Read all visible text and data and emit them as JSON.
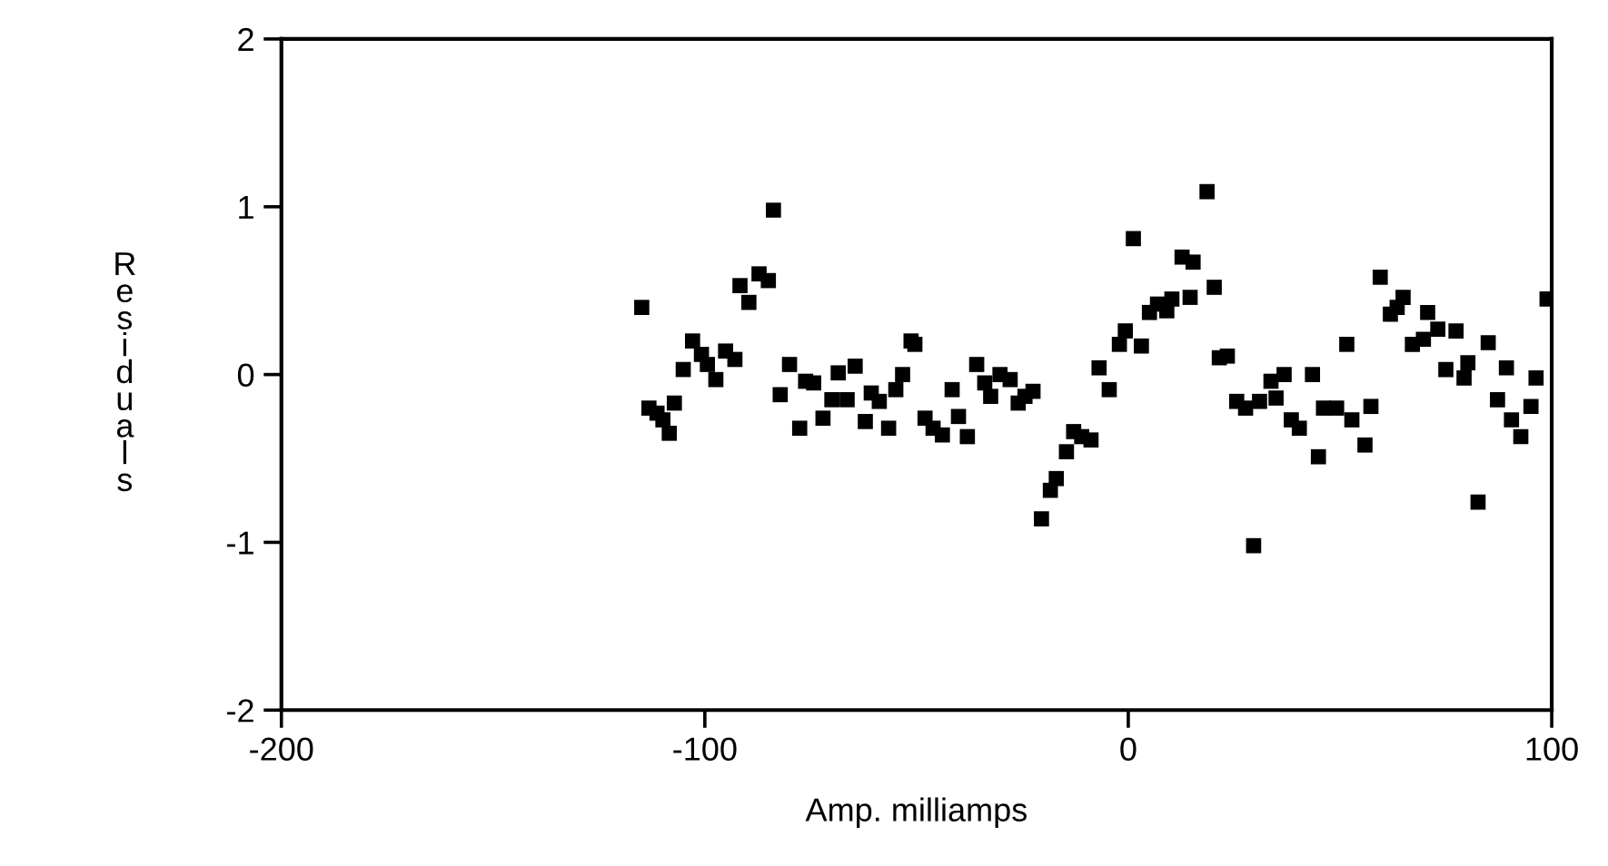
{
  "chart_data": {
    "type": "scatter",
    "xlabel": "Amp. milliamps",
    "ylabel": "Residuals",
    "marker": "square",
    "grid": false,
    "xlim": [
      -200,
      100
    ],
    "ylim": [
      -2,
      2
    ],
    "xticks": [
      -200,
      -100,
      0,
      100
    ],
    "yticks": [
      -2,
      -1,
      0,
      1,
      2
    ],
    "series": [
      {
        "color": "#000000",
        "x": [
          -114.9,
          -113.2,
          -111.3,
          -109.9,
          -108.4,
          -107.2,
          -105.1,
          -102.9,
          -100.8,
          -99.4,
          -97.4,
          -95.1,
          -92.9,
          -91.7,
          -89.6,
          -87.2,
          -85.0,
          -83.8,
          -82.2,
          -80.0,
          -77.6,
          -76.2,
          -74.3,
          -72.1,
          -70.0,
          -68.5,
          -66.4,
          -64.5,
          -62.1,
          -60.7,
          -58.8,
          -56.6,
          -54.9,
          -53.3,
          -51.3,
          -50.4,
          -48.0,
          -46.1,
          -43.9,
          -41.6,
          -40.1,
          -38.0,
          -35.8,
          -33.9,
          -32.5,
          -30.3,
          -27.9,
          -26.0,
          -24.4,
          -22.5,
          -20.5,
          -18.4,
          -17.0,
          -14.6,
          -12.9,
          -11.0,
          -8.8,
          -6.9,
          -4.5,
          -2.1,
          -0.7,
          1.2,
          3.1,
          5.0,
          6.9,
          9.1,
          10.3,
          12.7,
          15.3,
          14.6,
          18.6,
          20.3,
          21.5,
          23.4,
          25.6,
          27.7,
          29.6,
          31.0,
          33.7,
          34.9,
          36.8,
          38.5,
          40.4,
          43.5,
          44.9,
          46.1,
          49.2,
          51.6,
          52.8,
          55.9,
          57.3,
          59.5,
          61.9,
          63.5,
          64.9,
          67.1,
          69.7,
          70.7,
          73.1,
          75.0,
          77.4,
          79.3,
          80.2,
          82.6,
          85.0,
          87.2,
          89.3,
          90.5,
          92.7,
          95.1,
          96.3,
          98.9
        ],
        "values": [
          0.4,
          -0.2,
          -0.23,
          -0.27,
          -0.35,
          -0.17,
          0.03,
          0.2,
          0.12,
          0.06,
          -0.03,
          0.14,
          0.09,
          0.53,
          0.43,
          0.6,
          0.56,
          0.98,
          -0.12,
          0.06,
          -0.32,
          -0.04,
          -0.05,
          -0.26,
          -0.15,
          0.01,
          -0.15,
          0.05,
          -0.28,
          -0.11,
          -0.16,
          -0.32,
          -0.09,
          0.0,
          0.2,
          0.18,
          -0.26,
          -0.32,
          -0.36,
          -0.09,
          -0.25,
          -0.37,
          0.06,
          -0.05,
          -0.13,
          0.0,
          -0.03,
          -0.17,
          -0.13,
          -0.1,
          -0.86,
          -0.69,
          -0.62,
          -0.46,
          -0.34,
          -0.37,
          -0.39,
          0.04,
          -0.09,
          0.18,
          0.26,
          0.81,
          0.17,
          0.37,
          0.42,
          0.38,
          0.45,
          0.7,
          0.67,
          0.46,
          1.09,
          0.52,
          0.1,
          0.11,
          -0.16,
          -0.2,
          -1.02,
          -0.16,
          -0.04,
          -0.14,
          0.0,
          -0.27,
          -0.32,
          0.0,
          -0.49,
          -0.2,
          -0.2,
          0.18,
          -0.27,
          -0.42,
          -0.19,
          0.58,
          0.36,
          0.4,
          0.46,
          0.18,
          0.21,
          0.37,
          0.27,
          0.03,
          0.26,
          -0.02,
          0.07,
          -0.76,
          0.19,
          -0.15,
          0.04,
          -0.27,
          -0.37,
          -0.19,
          -0.02,
          0.45
        ]
      }
    ]
  }
}
